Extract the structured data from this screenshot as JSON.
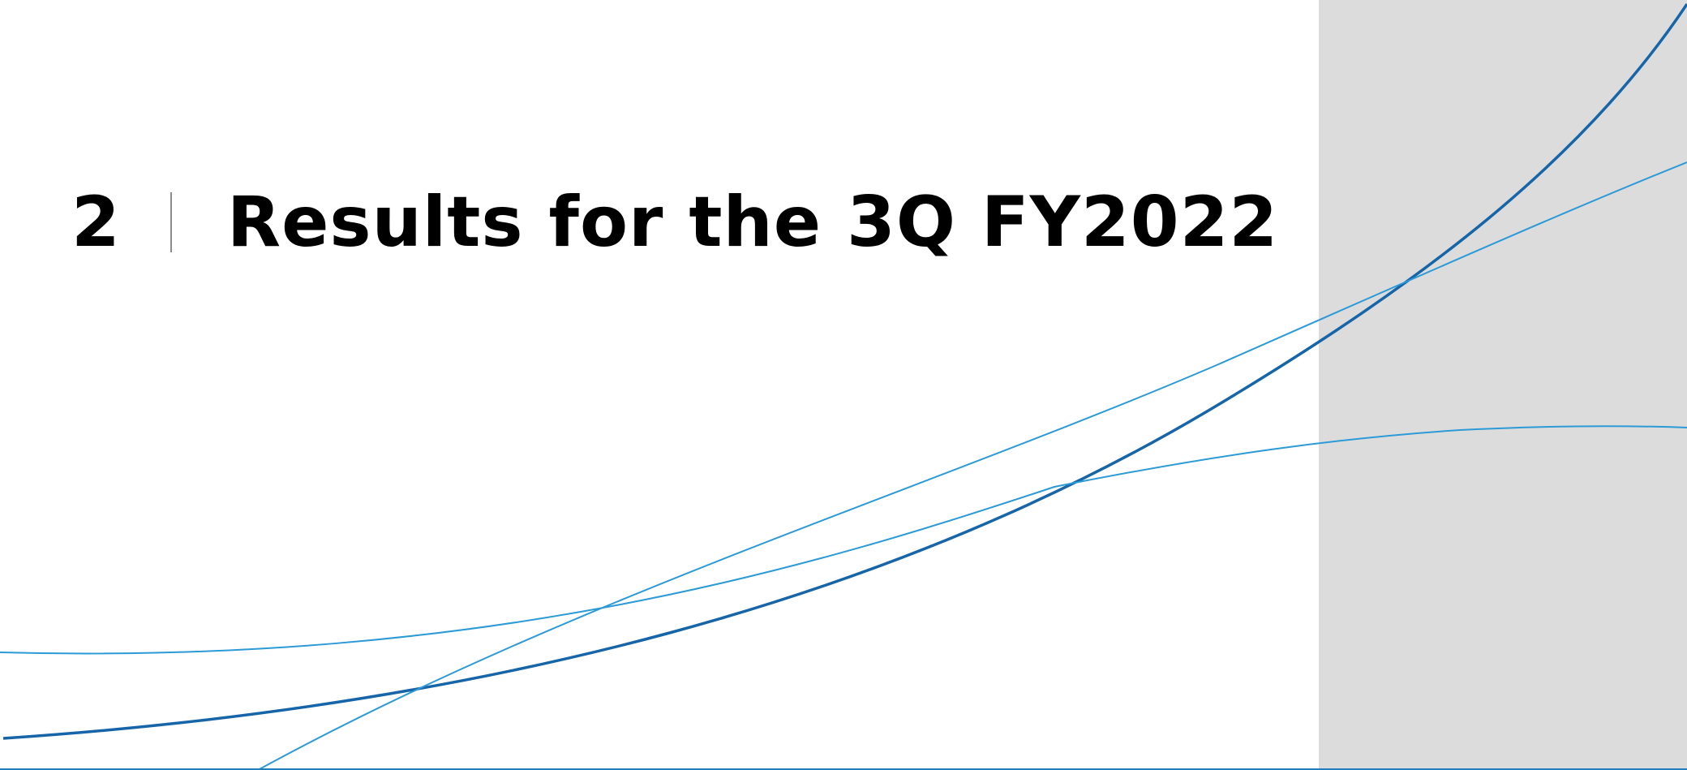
{
  "section": {
    "number": "2",
    "title": "Results for the 3Q FY2022"
  },
  "colors": {
    "dark_curve": "#1665a8",
    "light_curve": "#2b9ad6",
    "gray_panel": "#dcdcdd",
    "rule": "#1f7fbf"
  }
}
